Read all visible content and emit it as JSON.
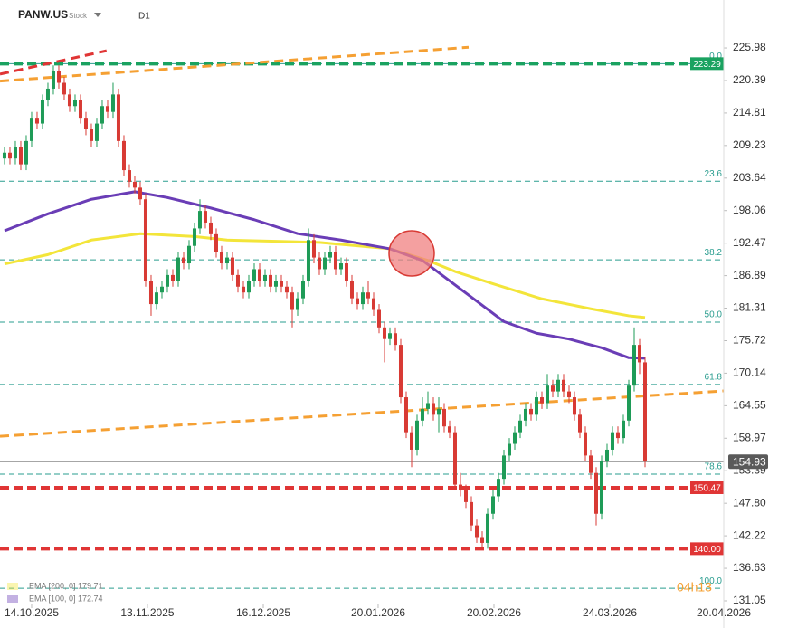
{
  "header": {
    "symbol": "PANW.US",
    "asset_type": "Stock",
    "timeframe": "D1"
  },
  "chart_data": {
    "type": "candlestick",
    "candles": [
      [
        207,
        209,
        206,
        208
      ],
      [
        208,
        209,
        206,
        207
      ],
      [
        207,
        210,
        206,
        209
      ],
      [
        209,
        210,
        205,
        206
      ],
      [
        206,
        211,
        205,
        210
      ],
      [
        210,
        215,
        209,
        214
      ],
      [
        214,
        215,
        212,
        213
      ],
      [
        213,
        218,
        212,
        217
      ],
      [
        217,
        220,
        216,
        219
      ],
      [
        219,
        223,
        218,
        222
      ],
      [
        222,
        223,
        219,
        220
      ],
      [
        220,
        221,
        217,
        218
      ],
      [
        218,
        219,
        215,
        216
      ],
      [
        216,
        218,
        215,
        217
      ],
      [
        217,
        218,
        213,
        214
      ],
      [
        214,
        215,
        211,
        212
      ],
      [
        212,
        213,
        209,
        210
      ],
      [
        210,
        214,
        209,
        213
      ],
      [
        213,
        217,
        212,
        216
      ],
      [
        216,
        217,
        214,
        215
      ],
      [
        215,
        220,
        214,
        218
      ],
      [
        218,
        219,
        209,
        210
      ],
      [
        210,
        211,
        204,
        205
      ],
      [
        205,
        206,
        202,
        203
      ],
      [
        203,
        204,
        201,
        202
      ],
      [
        202,
        203,
        199,
        200
      ],
      [
        200,
        201,
        185,
        186
      ],
      [
        186,
        187,
        180,
        182
      ],
      [
        182,
        185,
        181,
        184
      ],
      [
        184,
        186,
        183,
        185
      ],
      [
        185,
        188,
        184,
        187
      ],
      [
        187,
        188,
        185,
        186
      ],
      [
        186,
        191,
        185,
        190
      ],
      [
        190,
        191,
        188,
        189
      ],
      [
        189,
        193,
        188,
        192
      ],
      [
        192,
        196,
        191,
        195
      ],
      [
        195,
        200,
        194,
        198
      ],
      [
        198,
        199,
        195,
        196
      ],
      [
        196,
        197,
        193,
        194
      ],
      [
        194,
        195,
        190,
        191
      ],
      [
        191,
        192,
        188,
        189
      ],
      [
        189,
        191,
        188,
        190
      ],
      [
        190,
        191,
        186,
        187
      ],
      [
        187,
        188,
        184,
        185
      ],
      [
        185,
        186,
        183,
        184
      ],
      [
        184,
        187,
        183,
        186
      ],
      [
        186,
        189,
        185,
        188
      ],
      [
        188,
        189,
        185,
        186
      ],
      [
        186,
        188,
        185,
        187
      ],
      [
        187,
        188,
        184,
        185
      ],
      [
        185,
        187,
        184,
        186
      ],
      [
        186,
        187,
        184,
        185
      ],
      [
        185,
        186,
        183,
        184
      ],
      [
        184,
        185,
        178,
        181
      ],
      [
        181,
        184,
        180,
        183
      ],
      [
        183,
        187,
        182,
        186
      ],
      [
        186,
        195,
        185,
        193
      ],
      [
        193,
        194,
        189,
        190
      ],
      [
        190,
        191,
        187,
        188
      ],
      [
        188,
        191,
        187,
        190
      ],
      [
        190,
        192,
        189,
        191
      ],
      [
        191,
        192,
        187,
        188
      ],
      [
        188,
        190,
        187,
        189
      ],
      [
        189,
        190,
        185,
        186
      ],
      [
        186,
        187,
        182,
        183
      ],
      [
        183,
        184,
        181,
        182
      ],
      [
        182,
        185,
        181,
        184
      ],
      [
        184,
        186,
        182,
        183
      ],
      [
        183,
        184,
        180,
        181
      ],
      [
        181,
        182,
        177,
        178
      ],
      [
        178,
        179,
        172,
        176
      ],
      [
        176,
        178,
        175,
        177
      ],
      [
        177,
        178,
        174,
        175
      ],
      [
        175,
        176,
        165,
        166
      ],
      [
        166,
        167,
        159,
        160
      ],
      [
        160,
        161,
        154,
        157
      ],
      [
        157,
        163,
        156,
        162
      ],
      [
        162,
        166,
        161,
        164
      ],
      [
        164,
        167,
        163,
        165
      ],
      [
        165,
        166,
        162,
        163
      ],
      [
        163,
        166,
        160,
        164
      ],
      [
        164,
        165,
        160,
        161
      ],
      [
        161,
        162,
        159,
        160
      ],
      [
        160,
        161,
        150,
        151
      ],
      [
        151,
        153,
        149,
        150
      ],
      [
        150,
        151,
        147,
        148
      ],
      [
        148,
        149,
        143,
        144
      ],
      [
        144,
        145,
        141,
        142
      ],
      [
        142,
        143,
        140,
        141
      ],
      [
        141,
        147,
        140,
        146
      ],
      [
        146,
        150,
        145,
        149
      ],
      [
        149,
        153,
        148,
        152
      ],
      [
        152,
        157,
        151,
        156
      ],
      [
        156,
        159,
        155,
        158
      ],
      [
        158,
        161,
        157,
        160
      ],
      [
        160,
        163,
        159,
        162
      ],
      [
        162,
        165,
        161,
        164
      ],
      [
        164,
        165,
        162,
        163
      ],
      [
        163,
        167,
        162,
        166
      ],
      [
        166,
        167,
        164,
        165
      ],
      [
        165,
        170,
        164,
        168
      ],
      [
        168,
        169,
        166,
        167
      ],
      [
        167,
        170,
        166,
        169
      ],
      [
        169,
        170,
        166,
        167
      ],
      [
        167,
        168,
        165,
        166
      ],
      [
        166,
        167,
        162,
        163
      ],
      [
        163,
        164,
        159,
        160
      ],
      [
        160,
        161,
        155,
        156
      ],
      [
        156,
        157,
        152,
        153
      ],
      [
        153,
        154,
        144,
        146
      ],
      [
        146,
        156,
        145,
        155
      ],
      [
        155,
        158,
        154,
        157
      ],
      [
        157,
        161,
        156,
        160
      ],
      [
        160,
        161,
        158,
        159
      ],
      [
        159,
        163,
        158,
        162
      ],
      [
        162,
        169,
        161,
        168
      ],
      [
        168,
        178,
        167,
        175
      ],
      [
        175,
        176,
        170,
        172
      ],
      [
        172,
        173,
        154,
        155
      ]
    ],
    "up_color": "#1e9b57",
    "down_color": "#d83a34",
    "xlim": [
      -0.83,
      132.5
    ],
    "ylim": [
      128.56,
      234.22
    ],
    "yticks": [
      225.98,
      220.39,
      214.81,
      209.23,
      203.64,
      198.06,
      192.47,
      186.89,
      181.31,
      175.72,
      170.14,
      164.55,
      158.97,
      153.39,
      {
        "value": 147.8,
        "label": "147.80"
      },
      142.22,
      136.63,
      131.05
    ],
    "xticks": [
      {
        "value": 5,
        "label": "14.10.2025"
      },
      {
        "value": 26.33,
        "label": "13.11.2025"
      },
      {
        "value": 47.67,
        "label": "16.12.2025"
      },
      {
        "value": 68.83,
        "label": "20.01.2026"
      },
      {
        "value": 90.17,
        "label": "20.02.2026"
      },
      {
        "value": 111.5,
        "label": "24.03.2026"
      },
      {
        "value": 132.5,
        "label": "20.04.2026"
      }
    ],
    "indicators": [
      {
        "name": "EMA [200, 0] 179.71",
        "color": "#f3e53a",
        "x": [
          0,
          8,
          16,
          25,
          35,
          41,
          50,
          58,
          71,
          78,
          83,
          90,
          99,
          108,
          115,
          118
        ],
        "values": [
          188.9,
          190.5,
          193,
          194.1,
          193.6,
          193,
          192.8,
          192.6,
          191.5,
          189.5,
          187.6,
          185.5,
          182.9,
          181.2,
          180,
          179.7
        ]
      },
      {
        "name": "EMA [100, 0] 172.74",
        "color": "#6a3db6",
        "x": [
          0,
          8,
          16,
          24,
          30,
          38,
          46,
          54,
          62,
          71,
          77,
          82,
          87,
          92,
          98,
          104,
          110,
          115,
          118
        ],
        "values": [
          194.6,
          197.5,
          200,
          201.3,
          200.3,
          198.5,
          196.5,
          194.1,
          193,
          191.5,
          189.5,
          186,
          182.5,
          179,
          177,
          176,
          174.5,
          172.8,
          172.7
        ]
      }
    ],
    "trendlines": [
      {
        "color": "#f5a033",
        "x": [
          -0.83,
          85.5
        ],
        "values": [
          220.3,
          226.1
        ]
      },
      {
        "color": "#f5a033",
        "x": [
          -0.83,
          132.5
        ],
        "values": [
          159.3,
          167.1
        ]
      },
      {
        "color": "#e03535",
        "x": [
          -0.83,
          18.8
        ],
        "values": [
          221.5,
          225.5
        ]
      }
    ],
    "fibonacci": [
      {
        "level": "0.0",
        "price": 223.29
      },
      {
        "level": "23.6",
        "price": 203.1
      },
      {
        "level": "38.2",
        "price": 189.6
      },
      {
        "level": "50.0",
        "price": 178.9
      },
      {
        "level": "61.8",
        "price": 168.2
      },
      {
        "level": "78.6",
        "price": 152.8
      },
      {
        "level": "100.0",
        "price": 133.2
      }
    ],
    "fib_color": "#2a9d8f",
    "levels": [
      {
        "price": 223.29,
        "color": "#1aa260"
      },
      {
        "price": 150.47,
        "color": "#e03535"
      },
      {
        "price": {
          "value": 140,
          "label": "140.00"
        },
        "color": "#e03535"
      }
    ],
    "last_price": 154.93,
    "clock": "04h13"
  }
}
